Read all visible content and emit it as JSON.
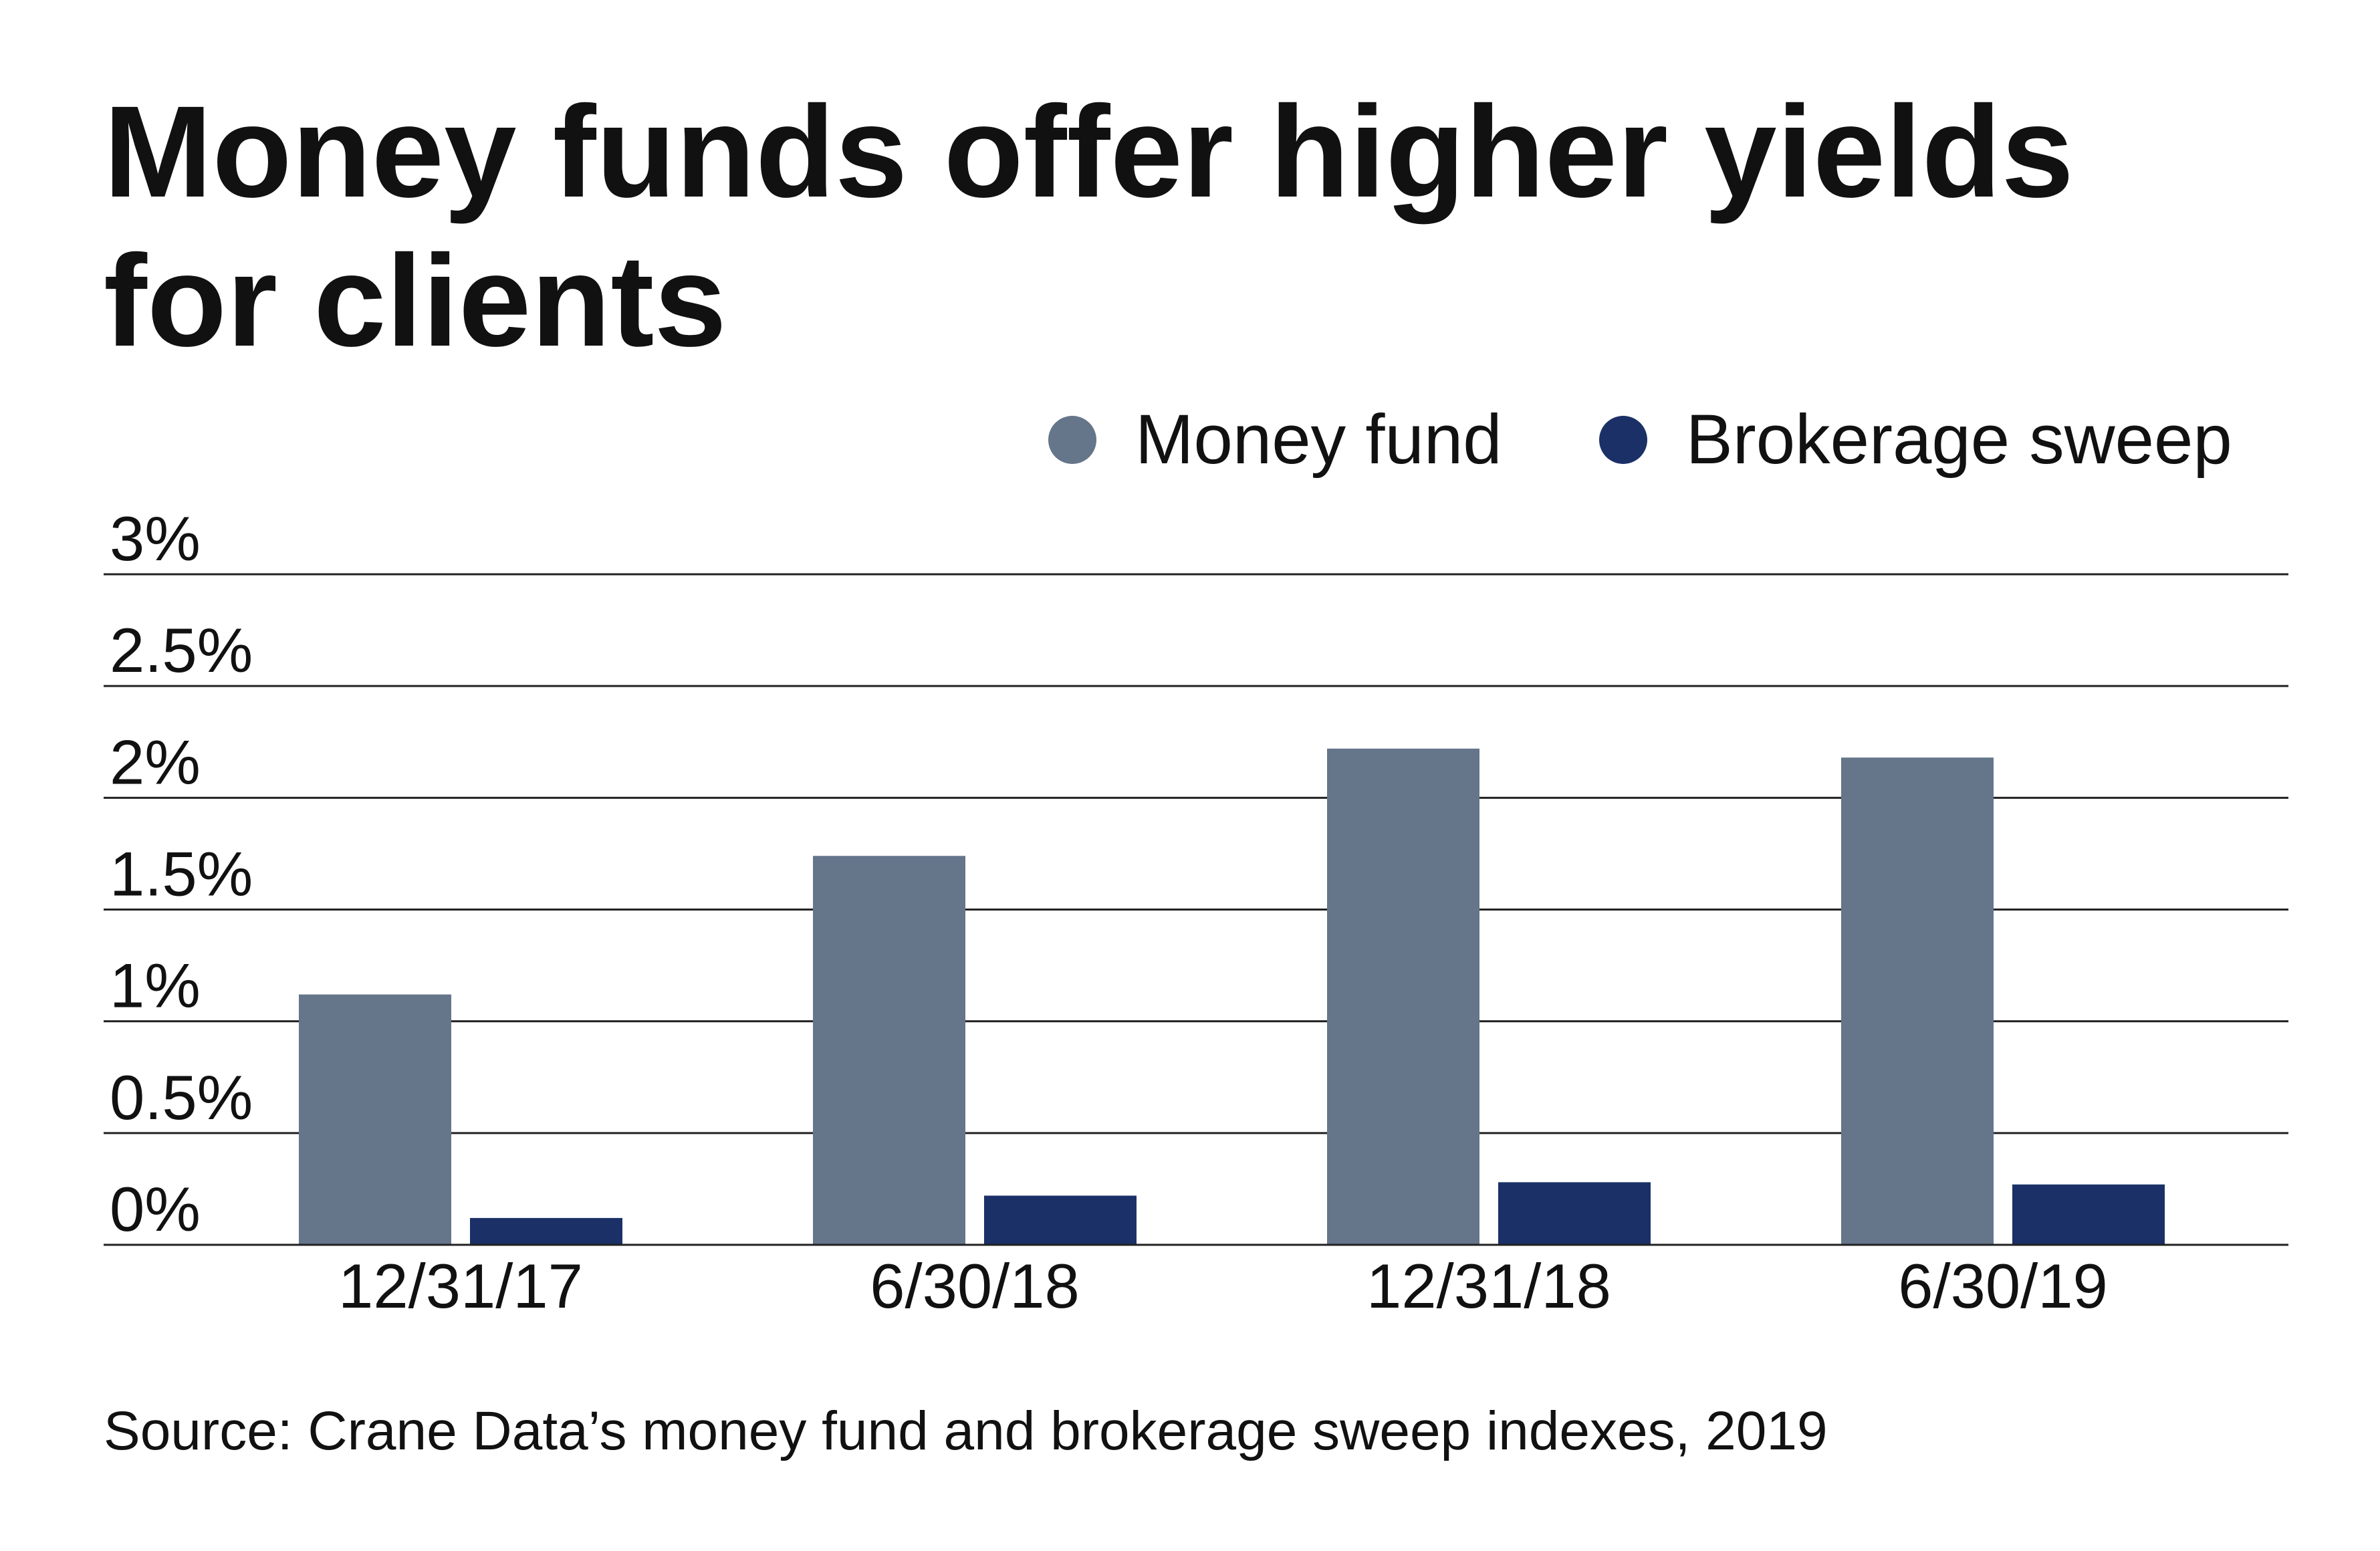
{
  "chart_data": {
    "type": "bar",
    "title": "Money funds offer higher yields for clients",
    "categories": [
      "12/31/17",
      "6/30/18",
      "12/31/18",
      "6/30/19"
    ],
    "series": [
      {
        "name": "Money fund",
        "values": [
          1.12,
          1.74,
          2.22,
          2.18
        ],
        "color": "#65758a"
      },
      {
        "name": "Brokerage sweep",
        "values": [
          0.12,
          0.22,
          0.28,
          0.27
        ],
        "color": "#1b3067"
      }
    ],
    "ylim": [
      0,
      3
    ],
    "yticks": [
      0,
      0.5,
      1,
      1.5,
      2,
      2.5,
      3
    ],
    "ytick_labels": [
      "0%",
      "0.5%",
      "1%",
      "1.5%",
      "2%",
      "2.5%",
      "3%"
    ],
    "grid": true,
    "gridline_color": "#222222",
    "legend": "top-right",
    "source": "Source: Crane Data’s money fund and brokerage sweep indexes, 2019"
  }
}
